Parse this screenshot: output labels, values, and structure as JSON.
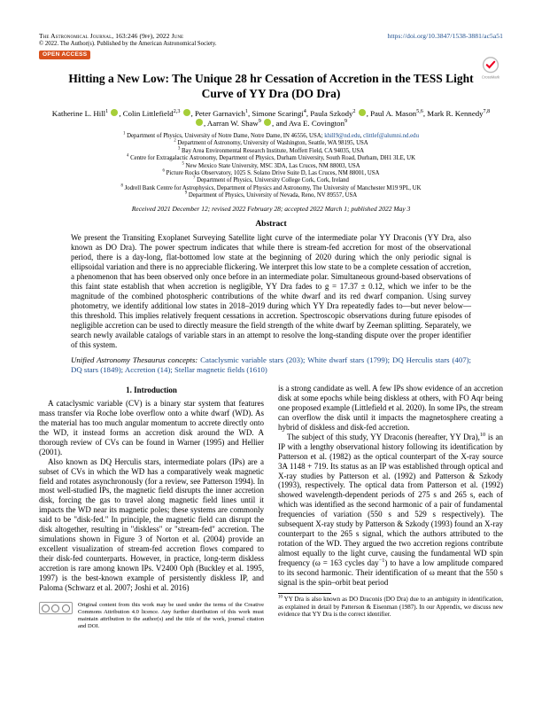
{
  "header": {
    "journal": "The Astronomical Journal, 163:246 (9pp), 2022 June",
    "doi_url": "https://doi.org/10.3847/1538-3881/ac5a51",
    "copyright": "© 2022. The Author(s). Published by the American Astronomical Society.",
    "open_access": "OPEN ACCESS"
  },
  "title": "Hitting a New Low: The Unique 28 hr Cessation of Accretion in the TESS Light Curve of YY Dra (DO Dra)",
  "authors_html": "Katherine L. Hill<sup>1</sup> <span class='orcid'></span>, Colin Littlefield<sup>2,3</sup> <span class='orcid'></span>, Peter Garnavich<sup>1</sup>, Simone Scaringi<sup>4</sup>, Paula Szkody<sup>2</sup> <span class='orcid'></span>, Paul A. Mason<sup>5,6</sup>, Mark R. Kennedy<sup>7,8</sup> <span class='orcid'></span>, Aarran W. Shaw<sup>9</sup> <span class='orcid'></span>, and Ava E. Covington<sup>9</sup>",
  "affils": [
    "<sup>1</sup> Department of Physics, University of Notre Dame, Notre Dame, IN 46556, USA; <a>khill9@nd.edu</a>, <a>clittlef@alumni.nd.edu</a>",
    "<sup>2</sup> Department of Astronomy, University of Washington, Seattle, WA 98195, USA",
    "<sup>3</sup> Bay Area Environmental Research Institute, Moffett Field, CA 94035, USA",
    "<sup>4</sup> Centre for Extragalactic Astronomy, Department of Physics, Durham University, South Road, Durham, DH1 3LE, UK",
    "<sup>5</sup> New Mexico State University, MSC 3DA, Las Cruces, NM 88003, USA",
    "<sup>6</sup> Picture Rocks Observatory, 1025 S. Solano Drive Suite D, Las Cruces, NM 88001, USA",
    "<sup>7</sup> Department of Physics, University College Cork, Cork, Ireland",
    "<sup>8</sup> Jodrell Bank Centre for Astrophysics, Department of Physics and Astronomy, The University of Manchester M19 9PL, UK",
    "<sup>9</sup> Department of Physics, University of Nevada, Reno, NV 89557, USA"
  ],
  "dates": "Received 2021 December 12; revised 2022 February 28; accepted 2022 March 1; published 2022 May 3",
  "abstract_head": "Abstract",
  "abstract": "We present the Transiting Exoplanet Surveying Satellite light curve of the intermediate polar YY Draconis (YY Dra, also known as DO Dra). The power spectrum indicates that while there is stream-fed accretion for most of the observational period, there is a day-long, flat-bottomed low state at the beginning of 2020 during which the only periodic signal is ellipsoidal variation and there is no appreciable flickering. We interpret this low state to be a complete cessation of accretion, a phenomenon that has been observed only once before in an intermediate polar. Simultaneous ground-based observations of this faint state establish that when accretion is negligible, YY Dra fades to g = 17.37 ± 0.12, which we infer to be the magnitude of the combined photospheric contributions of the white dwarf and its red dwarf companion. Using survey photometry, we identify additional low states in 2018–2019 during which YY Dra repeatedly fades to—but never below—this threshold. This implies relatively frequent cessations in accretion. Spectroscopic observations during future episodes of negligible accretion can be used to directly measure the field strength of the white dwarf by Zeeman splitting. Separately, we search newly available catalogs of variable stars in an attempt to resolve the long-standing dispute over the proper identifier of this system.",
  "concepts_prefix": "Unified Astronomy Thesaurus concepts: ",
  "concepts_links": "Cataclysmic variable stars (203); White dwarf stars (1799); DQ Herculis stars (407); DQ stars (1849); Accretion (14); Stellar magnetic fields (1610)",
  "section1": "1. Introduction",
  "col1_p1": "A cataclysmic variable (CV) is a binary star system that features mass transfer via Roche lobe overflow onto a white dwarf (WD). As the material has too much angular momentum to accrete directly onto the WD, it instead forms an accretion disk around the WD. A thorough review of CVs can be found in Warner (1995) and Hellier (2001).",
  "col1_p2": "Also known as DQ Herculis stars, intermediate polars (IPs) are a subset of CVs in which the WD has a comparatively weak magnetic field and rotates asynchronously (for a review, see Patterson 1994). In most well-studied IPs, the magnetic field disrupts the inner accretion disk, forcing the gas to travel along magnetic field lines until it impacts the WD near its magnetic poles; these systems are commonly said to be \"disk-fed.\" In principle, the magnetic field can disrupt the disk altogether, resulting in \"diskless\" or \"stream-fed\" accretion. The simulations shown in Figure 3 of Norton et al. (2004) provide an excellent visualization of stream-fed accretion flows compared to their disk-fed counterparts. However, in practice, long-term diskless accretion is rare among known IPs. V2400 Oph (Buckley et al. 1995, 1997) is the best-known example of persistently diskless IP, and Paloma (Schwarz et al. 2007; Joshi et al. 2016)",
  "col2_p1": "is a strong candidate as well. A few IPs show evidence of an accretion disk at some epochs while being diskless at others, with FO Aqr being one proposed example (Littlefield et al. 2020). In some IPs, the stream can overflow the disk until it impacts the magnetosphere creating a hybrid of diskless and disk-fed accretion.",
  "col2_p2": "The subject of this study, YY Draconis (hereafter, YY Dra),<sup>10</sup> is an IP with a lengthy observational history following its identification by Patterson et al. (1982) as the optical counterpart of the X-ray source 3A 1148 + 719. Its status as an IP was established through optical and X-ray studies by Patterson et al. (1992) and Patterson & Szkody (1993), respectively. The optical data from Patterson et al. (1992) showed wavelength-dependent periods of 275 s and 265 s, each of which was identified as the second harmonic of a pair of fundamental frequencies of variation (550 s and 529 s respectively). The subsequent X-ray study by Patterson & Szkody (1993) found an X-ray counterpart to the 265 s signal, which the authors attributed to the rotation of the WD. They argued the two accretion regions contribute almost equally to the light curve, causing the fundamental WD spin frequency (ω = 163 cycles day<sup>−1</sup>) to have a low amplitude compared to its second harmonic. Their identification of ω meant that the 550 s signal is the spin–orbit beat period",
  "cc_text": "Original content from this work may be used under the terms of the Creative Commons Attribution 4.0 licence. Any further distribution of this work must maintain attribution to the author(s) and the title of the work, journal citation and DOI.",
  "footnote10": "<sup>10</sup> YY Dra is also known as DO Draconis (DO Dra) due to an ambiguity in identification, as explained in detail by Patterson & Eisenman (1987). In our Appendix, we discuss new evidence that YY Dra is the correct identifier."
}
